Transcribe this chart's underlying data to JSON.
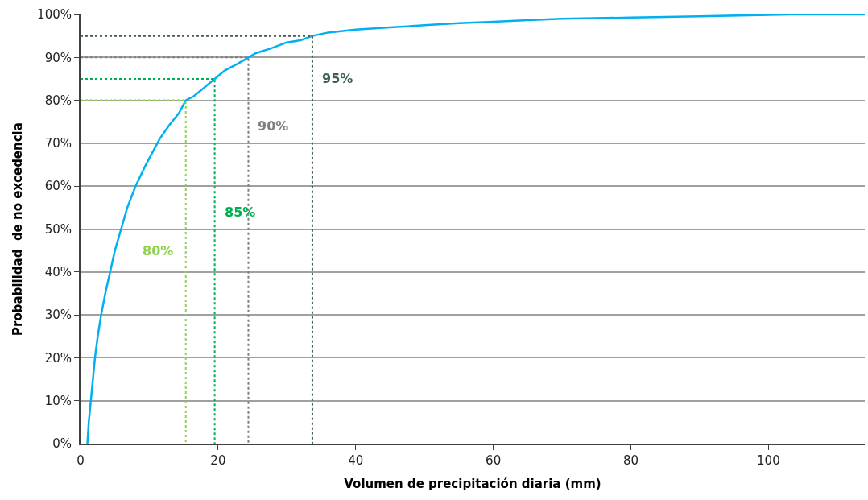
{
  "chart_data": {
    "type": "line",
    "xlabel": "Volumen de precipitación diaria (mm)",
    "ylabel": "Probabilidad  de no excedencia",
    "xlim": [
      0,
      114
    ],
    "xticks": [
      0,
      20,
      40,
      60,
      80,
      100
    ],
    "ylim": [
      0,
      100
    ],
    "yticks": [
      {
        "value": 0,
        "label": "0%"
      },
      {
        "value": 10,
        "label": "10%"
      },
      {
        "value": 20,
        "label": "20%"
      },
      {
        "value": 30,
        "label": "30%"
      },
      {
        "value": 40,
        "label": "40%"
      },
      {
        "value": 50,
        "label": "50%"
      },
      {
        "value": 60,
        "label": "60%"
      },
      {
        "value": 70,
        "label": "70%"
      },
      {
        "value": 80,
        "label": "80%"
      },
      {
        "value": 90,
        "label": "90%"
      },
      {
        "value": 100,
        "label": "100%"
      }
    ],
    "grid": "y",
    "marker": "none",
    "series": [
      {
        "color": "#00b0f0",
        "line_style": "solid",
        "x": [
          1.0,
          1.2,
          1.5,
          1.8,
          2.1,
          2.5,
          3.0,
          3.6,
          4.3,
          5.0,
          5.9,
          6.8,
          8.0,
          9.5,
          10.5,
          11.5,
          12.8,
          14.3,
          15.3,
          16.5,
          18.0,
          19.5,
          21.0,
          22.8,
          24.4,
          25.5,
          27.5,
          30.0,
          32.0,
          33.7,
          36.0,
          40.0,
          45.0,
          50.0,
          55.0,
          60.0,
          65.0,
          70.0,
          80.0,
          90.0,
          103.0,
          114.0
        ],
        "values": [
          0,
          5,
          10,
          15,
          20,
          25,
          30,
          35,
          40,
          45,
          50,
          55,
          60,
          65,
          68,
          71,
          74,
          77,
          80,
          81,
          83,
          85,
          87,
          88.5,
          90,
          91,
          92,
          93.5,
          94,
          95,
          95.8,
          96.5,
          97,
          97.5,
          98,
          98.3,
          98.7,
          99,
          99.3,
          99.6,
          100,
          100
        ]
      },
      {
        "color": "#92d050",
        "line_style": "dotted",
        "x": [
          0,
          15.3,
          15.3
        ],
        "values": [
          80,
          80,
          0
        ]
      },
      {
        "color": "#00b050",
        "line_style": "dotted",
        "x": [
          0,
          19.5,
          19.5
        ],
        "values": [
          85,
          85,
          0
        ]
      },
      {
        "color": "#808080",
        "line_style": "dotted",
        "x": [
          0,
          24.4,
          24.4
        ],
        "values": [
          90,
          90,
          0
        ]
      },
      {
        "color": "#3f5f4f",
        "line_style": "dotted",
        "x": [
          0,
          33.7,
          33.7
        ],
        "values": [
          95,
          95,
          0
        ]
      }
    ],
    "annotations": [
      {
        "text": "80%",
        "x": 15.3,
        "y": 45
      },
      {
        "text": "85%",
        "x": 19.5,
        "y": 54
      },
      {
        "text": "90%",
        "x": 24.4,
        "y": 74
      },
      {
        "text": "95%",
        "x": 33.7,
        "y": 85
      }
    ]
  }
}
